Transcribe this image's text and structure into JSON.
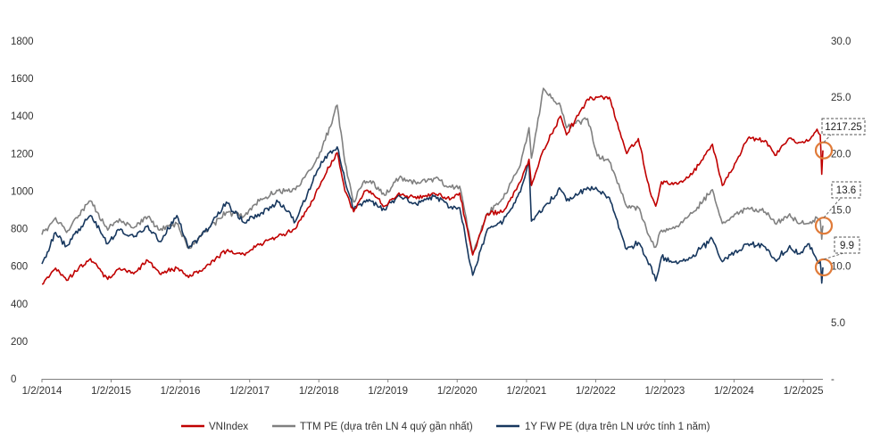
{
  "chart_data": {
    "type": "line",
    "title": "",
    "xlabel": "",
    "ylabel_left": "",
    "ylabel_right": "",
    "ylim_left": [
      0,
      1800
    ],
    "yticks_left": [
      "0",
      "200",
      "400",
      "600",
      "800",
      "1000",
      "1200",
      "1400",
      "1600",
      "1800"
    ],
    "ylim_right": [
      0,
      30
    ],
    "yticks_right": [
      "-",
      "5.0",
      "10.0",
      "15.0",
      "20.0",
      "25.0",
      "30.0"
    ],
    "xlim": [
      "2014-01-02",
      "2025-04-15"
    ],
    "xticks": [
      "1/2/2014",
      "1/2/2015",
      "1/2/2016",
      "1/2/2017",
      "1/2/2018",
      "1/2/2019",
      "1/2/2020",
      "1/2/2021",
      "1/2/2022",
      "1/2/2023",
      "1/2/2024",
      "1/2/2025"
    ],
    "grid": false,
    "legend_position": "bottom",
    "series": [
      {
        "name": "VNIndex",
        "axis": "left",
        "color": "#c00000",
        "points": [
          [
            "2014-01-02",
            505
          ],
          [
            "2014-03-15",
            590
          ],
          [
            "2014-05-12",
            525
          ],
          [
            "2014-07-15",
            590
          ],
          [
            "2014-09-15",
            640
          ],
          [
            "2014-12-15",
            530
          ],
          [
            "2015-02-15",
            590
          ],
          [
            "2015-05-01",
            560
          ],
          [
            "2015-07-15",
            630
          ],
          [
            "2015-09-15",
            560
          ],
          [
            "2015-12-15",
            590
          ],
          [
            "2016-02-15",
            540
          ],
          [
            "2016-06-01",
            610
          ],
          [
            "2016-09-01",
            680
          ],
          [
            "2016-12-01",
            665
          ],
          [
            "2017-03-01",
            720
          ],
          [
            "2017-06-01",
            760
          ],
          [
            "2017-09-01",
            800
          ],
          [
            "2017-12-01",
            950
          ],
          [
            "2018-01-15",
            1050
          ],
          [
            "2018-04-09",
            1205
          ],
          [
            "2018-05-20",
            1000
          ],
          [
            "2018-07-05",
            890
          ],
          [
            "2018-08-30",
            1000
          ],
          [
            "2018-10-01",
            1000
          ],
          [
            "2018-12-15",
            920
          ],
          [
            "2019-03-01",
            990
          ],
          [
            "2019-06-01",
            960
          ],
          [
            "2019-09-01",
            990
          ],
          [
            "2019-12-01",
            960
          ],
          [
            "2020-01-15",
            990
          ],
          [
            "2020-03-24",
            660
          ],
          [
            "2020-06-10",
            880
          ],
          [
            "2020-09-01",
            890
          ],
          [
            "2020-12-01",
            1050
          ],
          [
            "2021-01-15",
            1170
          ],
          [
            "2021-01-28",
            1030
          ],
          [
            "2021-04-01",
            1220
          ],
          [
            "2021-07-01",
            1400
          ],
          [
            "2021-08-01",
            1300
          ],
          [
            "2021-11-20",
            1490
          ],
          [
            "2022-01-10",
            1500
          ],
          [
            "2022-03-15",
            1500
          ],
          [
            "2022-06-15",
            1200
          ],
          [
            "2022-08-15",
            1280
          ],
          [
            "2022-10-15",
            1000
          ],
          [
            "2022-11-15",
            920
          ],
          [
            "2022-12-15",
            1050
          ],
          [
            "2023-03-15",
            1040
          ],
          [
            "2023-06-01",
            1100
          ],
          [
            "2023-09-10",
            1250
          ],
          [
            "2023-11-01",
            1030
          ],
          [
            "2023-12-15",
            1100
          ],
          [
            "2024-03-15",
            1280
          ],
          [
            "2024-06-15",
            1270
          ],
          [
            "2024-08-05",
            1190
          ],
          [
            "2024-10-15",
            1280
          ],
          [
            "2024-12-15",
            1260
          ],
          [
            "2025-02-01",
            1270
          ],
          [
            "2025-03-15",
            1330
          ],
          [
            "2025-04-01",
            1300
          ],
          [
            "2025-04-09",
            1090
          ],
          [
            "2025-04-15",
            1217.25
          ]
        ]
      },
      {
        "name": "TTM PE (dựa trên LN 4 quý gần nhất)",
        "axis": "right",
        "color": "#808080",
        "points": [
          [
            "2014-01-02",
            12.8
          ],
          [
            "2014-03-15",
            14.3
          ],
          [
            "2014-05-12",
            13.0
          ],
          [
            "2014-07-15",
            14.5
          ],
          [
            "2014-09-15",
            15.8
          ],
          [
            "2014-12-15",
            13.2
          ],
          [
            "2015-02-15",
            14.2
          ],
          [
            "2015-05-01",
            13.4
          ],
          [
            "2015-07-15",
            14.4
          ],
          [
            "2015-09-15",
            13.2
          ],
          [
            "2015-12-15",
            13.8
          ],
          [
            "2016-02-15",
            11.6
          ],
          [
            "2016-06-01",
            13.4
          ],
          [
            "2016-09-01",
            14.8
          ],
          [
            "2016-12-01",
            14.4
          ],
          [
            "2017-03-01",
            16.0
          ],
          [
            "2017-06-01",
            16.7
          ],
          [
            "2017-09-01",
            16.8
          ],
          [
            "2017-12-01",
            18.8
          ],
          [
            "2018-01-15",
            20.2
          ],
          [
            "2018-04-09",
            24.3
          ],
          [
            "2018-05-20",
            19.2
          ],
          [
            "2018-07-05",
            15.7
          ],
          [
            "2018-08-30",
            17.6
          ],
          [
            "2018-10-01",
            17.6
          ],
          [
            "2018-12-15",
            16.3
          ],
          [
            "2019-03-01",
            17.8
          ],
          [
            "2019-06-01",
            17.3
          ],
          [
            "2019-09-01",
            17.8
          ],
          [
            "2019-12-01",
            17.0
          ],
          [
            "2020-01-15",
            17.1
          ],
          [
            "2020-03-24",
            11.2
          ],
          [
            "2020-06-10",
            14.7
          ],
          [
            "2020-09-01",
            16.0
          ],
          [
            "2020-12-01",
            19.0
          ],
          [
            "2021-01-15",
            22.3
          ],
          [
            "2021-01-28",
            19.6
          ],
          [
            "2021-04-01",
            25.8
          ],
          [
            "2021-07-01",
            24.2
          ],
          [
            "2021-08-01",
            22.3
          ],
          [
            "2021-11-20",
            23.1
          ],
          [
            "2022-01-10",
            19.8
          ],
          [
            "2022-03-15",
            19.3
          ],
          [
            "2022-06-15",
            15.3
          ],
          [
            "2022-08-15",
            15.2
          ],
          [
            "2022-10-15",
            12.6
          ],
          [
            "2022-11-15",
            11.7
          ],
          [
            "2022-12-15",
            13.2
          ],
          [
            "2023-03-15",
            13.5
          ],
          [
            "2023-06-01",
            14.8
          ],
          [
            "2023-09-10",
            16.8
          ],
          [
            "2023-11-01",
            13.8
          ],
          [
            "2023-12-15",
            14.3
          ],
          [
            "2024-03-15",
            15.2
          ],
          [
            "2024-06-15",
            14.8
          ],
          [
            "2024-08-05",
            13.8
          ],
          [
            "2024-10-15",
            14.5
          ],
          [
            "2024-12-15",
            13.8
          ],
          [
            "2025-02-01",
            13.8
          ],
          [
            "2025-03-15",
            14.3
          ],
          [
            "2025-04-01",
            14.1
          ],
          [
            "2025-04-09",
            12.4
          ],
          [
            "2025-04-15",
            13.6
          ]
        ]
      },
      {
        "name": "1Y FW PE (dựa trên LN ước tính 1 năm)",
        "axis": "right",
        "color": "#17375e",
        "points": [
          [
            "2014-01-02",
            10.2
          ],
          [
            "2014-03-15",
            13.0
          ],
          [
            "2014-05-12",
            11.8
          ],
          [
            "2014-07-15",
            13.3
          ],
          [
            "2014-09-15",
            14.5
          ],
          [
            "2014-12-15",
            12.0
          ],
          [
            "2015-02-15",
            13.2
          ],
          [
            "2015-05-01",
            12.6
          ],
          [
            "2015-07-15",
            13.6
          ],
          [
            "2015-09-15",
            12.2
          ],
          [
            "2015-12-15",
            14.5
          ],
          [
            "2016-02-15",
            11.6
          ],
          [
            "2016-06-01",
            13.4
          ],
          [
            "2016-09-01",
            15.7
          ],
          [
            "2016-12-01",
            13.9
          ],
          [
            "2017-03-01",
            14.7
          ],
          [
            "2017-06-01",
            15.7
          ],
          [
            "2017-09-01",
            14.0
          ],
          [
            "2017-12-01",
            17.5
          ],
          [
            "2018-01-15",
            19.3
          ],
          [
            "2018-04-09",
            20.6
          ],
          [
            "2018-05-20",
            17.6
          ],
          [
            "2018-07-05",
            15.0
          ],
          [
            "2018-08-30",
            15.8
          ],
          [
            "2018-10-01",
            15.8
          ],
          [
            "2018-12-15",
            15.0
          ],
          [
            "2019-03-01",
            16.3
          ],
          [
            "2019-06-01",
            15.5
          ],
          [
            "2019-09-01",
            16.2
          ],
          [
            "2019-12-01",
            15.3
          ],
          [
            "2020-01-15",
            15.2
          ],
          [
            "2020-03-24",
            9.2
          ],
          [
            "2020-06-10",
            13.3
          ],
          [
            "2020-09-01",
            14.0
          ],
          [
            "2020-12-01",
            16.6
          ],
          [
            "2021-01-15",
            19.2
          ],
          [
            "2021-01-28",
            14.0
          ],
          [
            "2021-04-01",
            15.2
          ],
          [
            "2021-07-01",
            16.8
          ],
          [
            "2021-08-01",
            15.8
          ],
          [
            "2021-11-20",
            17.0
          ],
          [
            "2022-01-10",
            16.8
          ],
          [
            "2022-03-15",
            16.1
          ],
          [
            "2022-06-15",
            11.5
          ],
          [
            "2022-08-15",
            12.1
          ],
          [
            "2022-10-15",
            10.2
          ],
          [
            "2022-11-15",
            8.7
          ],
          [
            "2022-12-15",
            10.8
          ],
          [
            "2023-03-15",
            10.3
          ],
          [
            "2023-06-01",
            11.0
          ],
          [
            "2023-09-10",
            12.4
          ],
          [
            "2023-11-01",
            10.4
          ],
          [
            "2023-12-15",
            11.0
          ],
          [
            "2024-03-15",
            12.0
          ],
          [
            "2024-06-15",
            11.7
          ],
          [
            "2024-08-05",
            10.6
          ],
          [
            "2024-10-15",
            11.6
          ],
          [
            "2024-12-15",
            11.1
          ],
          [
            "2025-02-01",
            12.0
          ],
          [
            "2025-03-15",
            10.5
          ],
          [
            "2025-04-01",
            10.4
          ],
          [
            "2025-04-09",
            8.5
          ],
          [
            "2025-04-15",
            9.9
          ]
        ]
      }
    ],
    "annotations": [
      {
        "series": 0,
        "label": "1217.25",
        "value": 1217.25,
        "date": "2025-04-15"
      },
      {
        "series": 1,
        "label": "13.6",
        "value": 13.6,
        "date": "2025-04-15"
      },
      {
        "series": 2,
        "label": "9.9",
        "value": 9.9,
        "date": "2025-04-15"
      }
    ],
    "annotation_marker_color": "#e07b39"
  }
}
